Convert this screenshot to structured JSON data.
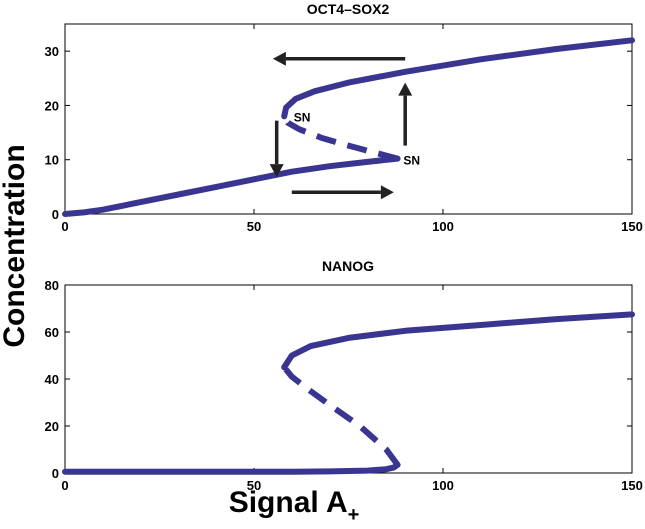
{
  "figure": {
    "ylabel": "Concentration",
    "xlabel_main": "Signal A",
    "xlabel_sub": "+"
  },
  "colors": {
    "curve": "#3b3592",
    "arrow": "#222222"
  },
  "chart_data": [
    {
      "type": "line",
      "title": "OCT4–SOX2",
      "xlim": [
        0,
        150
      ],
      "ylim": [
        0,
        35
      ],
      "xticks": [
        "0",
        "50",
        "100",
        "150"
      ],
      "yticks": [
        "0",
        "10",
        "20",
        "30"
      ],
      "grid": false,
      "series": [
        {
          "style": "solid",
          "x": [
            0,
            5,
            10,
            20,
            30,
            40,
            50,
            60,
            70,
            80,
            88
          ],
          "y": [
            0,
            0.3,
            0.8,
            2.2,
            3.6,
            5.0,
            6.4,
            7.8,
            8.8,
            9.6,
            10.2
          ]
        },
        {
          "style": "dashed",
          "x": [
            88,
            82,
            75,
            68,
            62,
            59,
            58
          ],
          "y": [
            10.2,
            11.3,
            12.6,
            14.0,
            15.6,
            16.8,
            18.0
          ]
        },
        {
          "style": "solid",
          "x": [
            58,
            58.5,
            61,
            66,
            75,
            90,
            110,
            130,
            150
          ],
          "y": [
            18.0,
            19.6,
            21.2,
            22.6,
            24.2,
            26.2,
            28.5,
            30.4,
            32.0
          ]
        }
      ],
      "annotations": [
        {
          "text": "SN",
          "x": 60,
          "y": 18
        },
        {
          "text": "SN",
          "x": 89,
          "y": 10
        }
      ],
      "arrows": [
        {
          "from": [
            90,
            28.6
          ],
          "to": [
            55,
            28.6
          ]
        },
        {
          "from": [
            90,
            12.6
          ],
          "to": [
            90,
            24.2
          ]
        },
        {
          "from": [
            56,
            17.2
          ],
          "to": [
            56,
            6.8
          ]
        },
        {
          "from": [
            60,
            4.0
          ],
          "to": [
            87,
            4.0
          ]
        }
      ]
    },
    {
      "type": "line",
      "title": "NANOG",
      "xlim": [
        0,
        150
      ],
      "ylim": [
        0,
        80
      ],
      "xticks": [
        "0",
        "50",
        "100",
        "150"
      ],
      "yticks": [
        "0",
        "20",
        "40",
        "60",
        "80"
      ],
      "grid": false,
      "series": [
        {
          "style": "solid",
          "x": [
            0,
            20,
            40,
            60,
            70,
            80,
            85,
            87,
            88
          ],
          "y": [
            0.5,
            0.5,
            0.5,
            0.5,
            0.7,
            1.0,
            1.6,
            2.4,
            3.5
          ]
        },
        {
          "style": "dashed",
          "x": [
            88,
            85,
            78,
            70,
            64,
            60,
            58
          ],
          "y": [
            3.5,
            10,
            20,
            29,
            36,
            41,
            45
          ]
        },
        {
          "style": "solid",
          "x": [
            58,
            60,
            65,
            75,
            90,
            110,
            130,
            150
          ],
          "y": [
            45,
            50,
            54,
            57.5,
            60.5,
            63,
            65.5,
            67.5
          ]
        }
      ]
    }
  ]
}
